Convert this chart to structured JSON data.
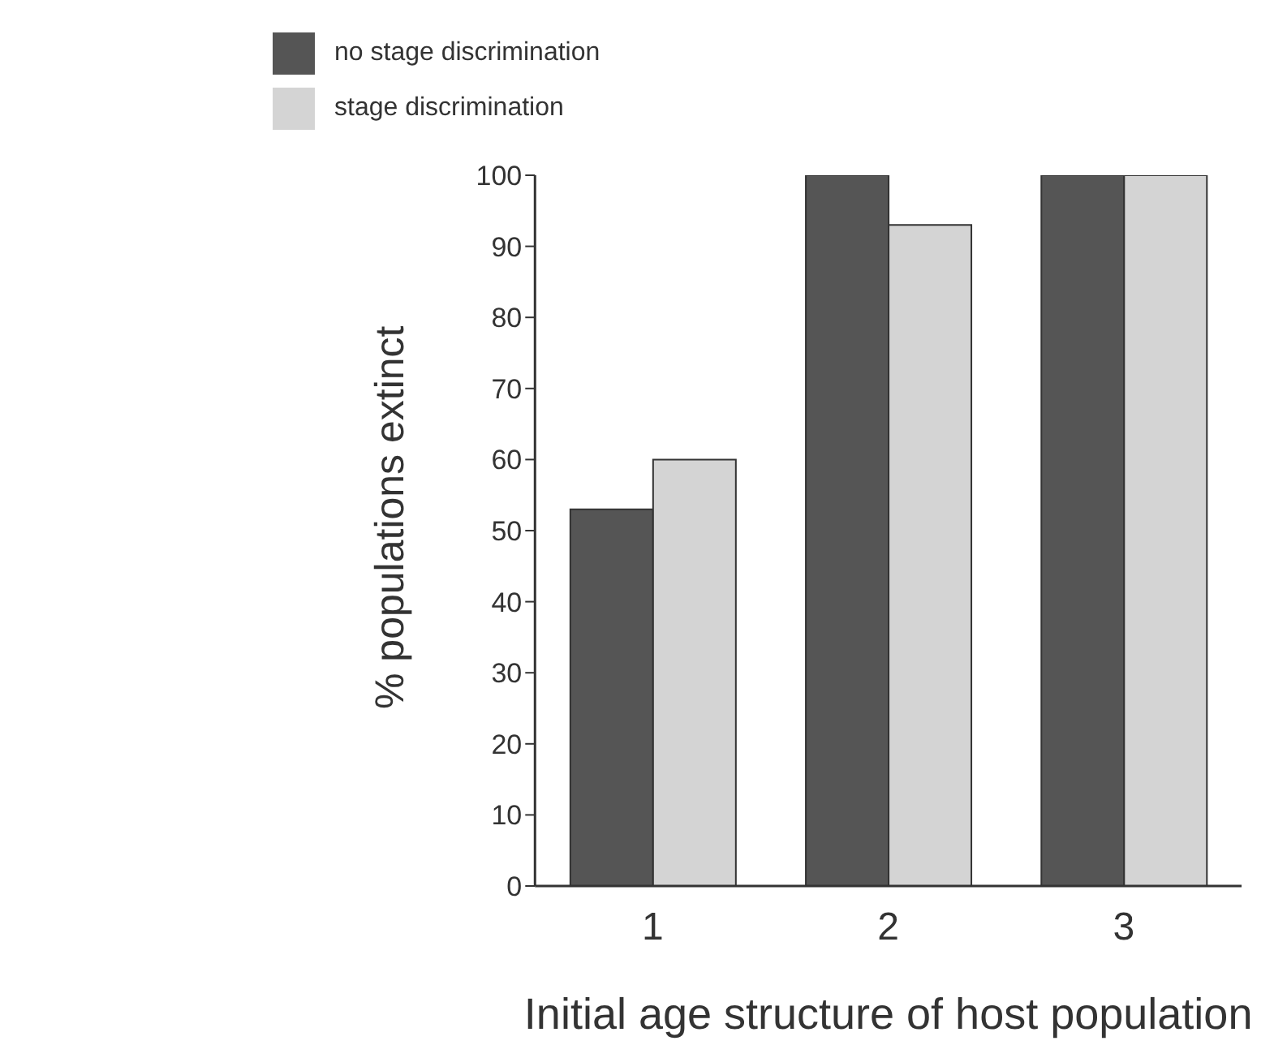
{
  "chart_data": {
    "type": "bar",
    "xlabel": "Initial age structure of host population",
    "ylabel": "% populations extinct",
    "categories": [
      "1",
      "2",
      "3"
    ],
    "series": [
      {
        "name": "no stage discrimination",
        "color": "#555555",
        "values": [
          53,
          100,
          100
        ]
      },
      {
        "name": "stage discrimination",
        "color": "#d4d4d4",
        "values": [
          60,
          93,
          100
        ]
      }
    ],
    "ylim": [
      0,
      100
    ],
    "yticks": [
      0,
      10,
      20,
      30,
      40,
      50,
      60,
      70,
      80,
      90,
      100
    ],
    "grid": false,
    "legend": "top left"
  }
}
